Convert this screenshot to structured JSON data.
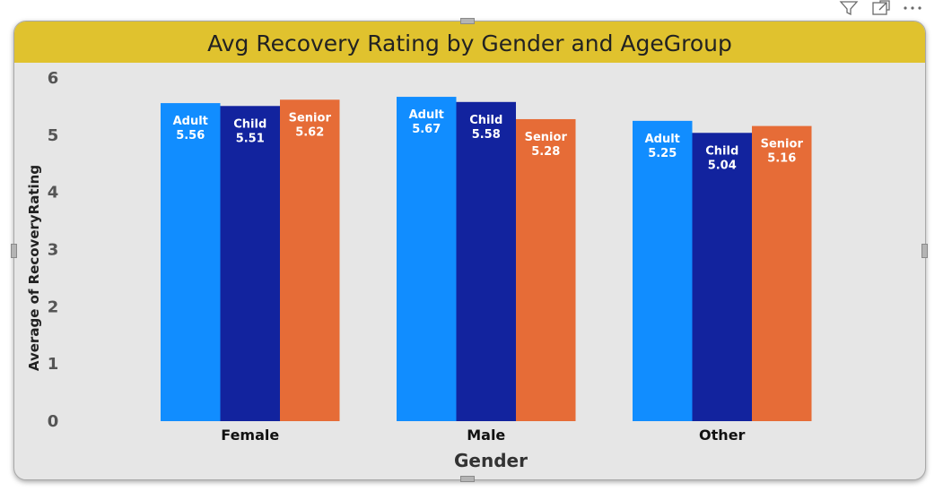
{
  "toolbar": {
    "icons": [
      "filter-icon",
      "focus-mode-icon",
      "more-options-icon"
    ]
  },
  "chart_data": {
    "type": "bar",
    "title": "Avg Recovery Rating by Gender and AgeGroup",
    "xlabel": "Gender",
    "ylabel": "Average of RecoveryRating",
    "categories": [
      "Female",
      "Male",
      "Other"
    ],
    "series": [
      {
        "name": "Adult",
        "color": "#118dff",
        "values": [
          5.56,
          5.67,
          5.25
        ],
        "labels": [
          "5.56",
          "5.67",
          "5.25"
        ]
      },
      {
        "name": "Child",
        "color": "#12239e",
        "values": [
          5.51,
          5.58,
          5.04
        ],
        "labels": [
          "5.51",
          "5.58",
          "5.04"
        ]
      },
      {
        "name": "Senior",
        "color": "#e66c37",
        "values": [
          5.62,
          5.28,
          5.16
        ],
        "labels": [
          "5.62",
          "5.28",
          "5.16"
        ]
      }
    ],
    "ylim": [
      0,
      6
    ],
    "yticks": [
      "0",
      "1",
      "2",
      "3",
      "4",
      "5",
      "6"
    ],
    "grid": false,
    "legend": "none"
  }
}
